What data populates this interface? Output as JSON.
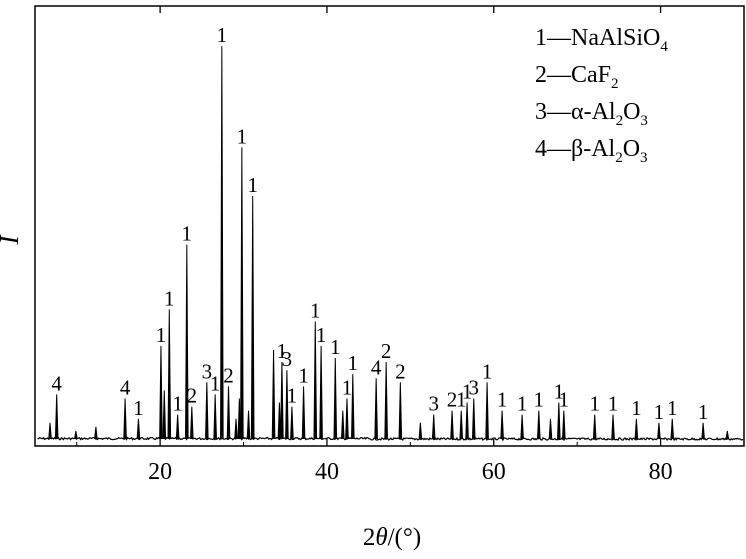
{
  "chart_data": {
    "type": "line",
    "xlabel_prefix": "2",
    "xlabel_symbol": "θ",
    "xlabel_suffix": "/(°)",
    "ylabel": "I",
    "xlim": [
      5,
      90
    ],
    "x_ticks": [
      20,
      40,
      60,
      80
    ],
    "x_tick_labels": [
      "20",
      "40",
      "60",
      "80"
    ],
    "legend": {
      "placement": "top-right",
      "entries": [
        {
          "id": "1",
          "dash": "—",
          "formula": [
            [
              "NaAlSiO",
              false
            ],
            [
              "4",
              true
            ]
          ]
        },
        {
          "id": "2",
          "dash": "—",
          "formula": [
            [
              "CaF",
              false
            ],
            [
              "2",
              true
            ]
          ]
        },
        {
          "id": "3",
          "dash": "—",
          "formula": [
            [
              "α-Al",
              false
            ],
            [
              "2",
              true
            ],
            [
              "O",
              false
            ],
            [
              "3",
              true
            ]
          ]
        },
        {
          "id": "4",
          "dash": "—",
          "formula": [
            [
              "β-Al",
              false
            ],
            [
              "2",
              true
            ],
            [
              "O",
              false
            ],
            [
              "3",
              true
            ]
          ]
        }
      ]
    },
    "peaks": [
      {
        "x": 6.8,
        "h": 0.04
      },
      {
        "x": 7.6,
        "h": 0.11,
        "label": "4"
      },
      {
        "x": 9.9,
        "h": 0.02
      },
      {
        "x": 12.3,
        "h": 0.03
      },
      {
        "x": 15.8,
        "h": 0.1,
        "label": "4"
      },
      {
        "x": 17.4,
        "h": 0.05,
        "label": "1"
      },
      {
        "x": 20.1,
        "h": 0.23,
        "label": "1"
      },
      {
        "x": 20.5,
        "h": 0.12
      },
      {
        "x": 21.1,
        "h": 0.32,
        "label": "1"
      },
      {
        "x": 22.1,
        "h": 0.06,
        "label": "1"
      },
      {
        "x": 23.2,
        "h": 0.48,
        "label": "1"
      },
      {
        "x": 23.8,
        "h": 0.08,
        "label": "2"
      },
      {
        "x": 25.6,
        "h": 0.14,
        "label": "3"
      },
      {
        "x": 26.6,
        "h": 0.11,
        "label": "1"
      },
      {
        "x": 27.4,
        "h": 0.97,
        "label": "1"
      },
      {
        "x": 28.2,
        "h": 0.13,
        "label": "2"
      },
      {
        "x": 29.1,
        "h": 0.05
      },
      {
        "x": 29.5,
        "h": 0.1
      },
      {
        "x": 29.8,
        "h": 0.72,
        "label": "1"
      },
      {
        "x": 30.6,
        "h": 0.07
      },
      {
        "x": 31.1,
        "h": 0.6,
        "label": "1"
      },
      {
        "x": 33.6,
        "h": 0.22
      },
      {
        "x": 34.3,
        "h": 0.09
      },
      {
        "x": 34.6,
        "h": 0.19,
        "label": "1"
      },
      {
        "x": 35.2,
        "h": 0.17,
        "label": "3"
      },
      {
        "x": 35.8,
        "h": 0.08,
        "label": "1"
      },
      {
        "x": 37.2,
        "h": 0.13,
        "label": "1"
      },
      {
        "x": 38.6,
        "h": 0.29,
        "label": "1"
      },
      {
        "x": 39.3,
        "h": 0.23,
        "label": "1"
      },
      {
        "x": 41.0,
        "h": 0.2,
        "label": "1"
      },
      {
        "x": 41.9,
        "h": 0.07
      },
      {
        "x": 42.4,
        "h": 0.1,
        "label": "1"
      },
      {
        "x": 43.1,
        "h": 0.16,
        "label": "1"
      },
      {
        "x": 45.9,
        "h": 0.15,
        "label": "4"
      },
      {
        "x": 47.1,
        "h": 0.19,
        "label": "2"
      },
      {
        "x": 48.8,
        "h": 0.14,
        "label": "2"
      },
      {
        "x": 51.2,
        "h": 0.04
      },
      {
        "x": 52.8,
        "h": 0.06,
        "label": "3"
      },
      {
        "x": 55.0,
        "h": 0.07,
        "label": "2"
      },
      {
        "x": 56.1,
        "h": 0.07,
        "label": "1"
      },
      {
        "x": 56.8,
        "h": 0.09,
        "label": "1"
      },
      {
        "x": 57.6,
        "h": 0.1,
        "label": "3"
      },
      {
        "x": 59.2,
        "h": 0.14,
        "label": "1"
      },
      {
        "x": 61.0,
        "h": 0.07,
        "label": "1"
      },
      {
        "x": 63.4,
        "h": 0.06,
        "label": "1"
      },
      {
        "x": 65.4,
        "h": 0.07,
        "label": "1"
      },
      {
        "x": 66.8,
        "h": 0.05
      },
      {
        "x": 67.8,
        "h": 0.09,
        "label": "1"
      },
      {
        "x": 68.4,
        "h": 0.07,
        "label": "1"
      },
      {
        "x": 72.1,
        "h": 0.06,
        "label": "1"
      },
      {
        "x": 74.3,
        "h": 0.06,
        "label": "1"
      },
      {
        "x": 77.1,
        "h": 0.05,
        "label": "1"
      },
      {
        "x": 79.8,
        "h": 0.04,
        "label": "1"
      },
      {
        "x": 81.4,
        "h": 0.05,
        "label": "1"
      },
      {
        "x": 85.1,
        "h": 0.04,
        "label": "1"
      },
      {
        "x": 88.0,
        "h": 0.02
      }
    ]
  }
}
